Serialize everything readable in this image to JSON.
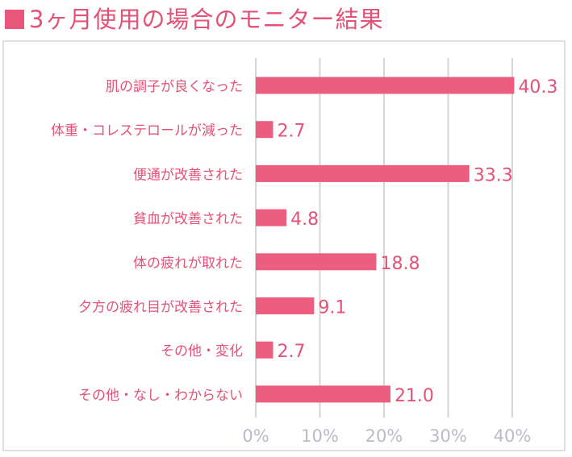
{
  "title": "3ヶ月使用の場合のモニター結果",
  "colors": {
    "accent": "#e8577b",
    "bar": "#ec5d80",
    "grid": "#d6d6d6",
    "label": "#e35277",
    "value": "#e35277",
    "tick": "#b9bcc6"
  },
  "chart_data": {
    "type": "bar",
    "orientation": "horizontal",
    "categories": [
      "肌の調子が良くなった",
      "体重・コレステロールが減った",
      "便通が改善された",
      "貧血が改善された",
      "体の疲れが取れた",
      "夕方の疲れ目が改善された",
      "その他・変化",
      "その他・なし・わからない"
    ],
    "values": [
      40.3,
      2.7,
      33.3,
      4.8,
      18.8,
      9.1,
      2.7,
      21.0
    ],
    "value_labels": [
      "40.3",
      "2.7",
      "33.3",
      "4.8",
      "18.8",
      "9.1",
      "2.7",
      "21.0"
    ],
    "xlim": [
      0,
      40
    ],
    "xticks": [
      0,
      10,
      20,
      30,
      40
    ],
    "xtick_labels": [
      "0%",
      "10%",
      "20%",
      "30%",
      "40%"
    ],
    "grid": true,
    "title": "3ヶ月使用の場合のモニター結果",
    "xlabel": "",
    "ylabel": ""
  }
}
